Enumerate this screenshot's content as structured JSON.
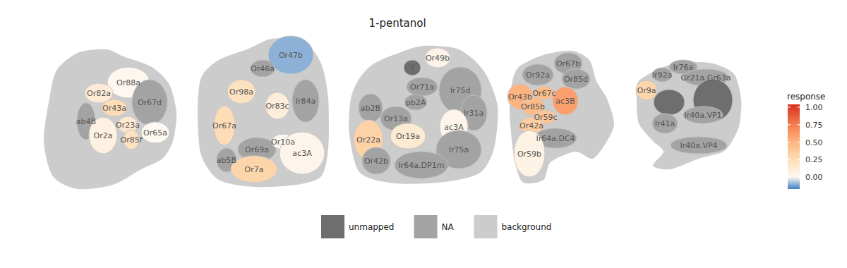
{
  "chart_data": {
    "type": "glomerular_map",
    "title": "1-pentanol",
    "panels": [
      {
        "glomeruli": [
          {
            "label": "Or88a",
            "response": 0.01
          },
          {
            "label": "Or82a",
            "response": 0.12
          },
          {
            "label": "Or67d",
            "response": null,
            "status": "NA"
          },
          {
            "label": "ab4B",
            "response": null,
            "status": "NA"
          },
          {
            "label": "Or43a",
            "response": 0.25
          },
          {
            "label": "Or23a",
            "response": 0.15
          },
          {
            "label": "Or2a",
            "response": 0.07
          },
          {
            "label": "Or85f",
            "response": 0.2
          },
          {
            "label": "Or65a",
            "response": 0.0
          }
        ]
      },
      {
        "glomeruli": [
          {
            "label": "Or47b",
            "response": -0.1
          },
          {
            "label": "Or46a",
            "response": null,
            "status": "NA"
          },
          {
            "label": "Or98a",
            "response": 0.2
          },
          {
            "label": "Or83c",
            "response": 0.1
          },
          {
            "label": "Ir84a",
            "response": null,
            "status": "NA"
          },
          {
            "label": "Or67a",
            "response": 0.25
          },
          {
            "label": "Or69a",
            "response": null,
            "status": "NA"
          },
          {
            "label": "Or10a",
            "response": 0.02
          },
          {
            "label": "ac3A",
            "response": 0.03
          },
          {
            "label": "ab5B",
            "response": null,
            "status": "NA"
          },
          {
            "label": "Or7a",
            "response": 0.3
          }
        ]
      },
      {
        "glomeruli": [
          {
            "label": "?",
            "response": null,
            "status": "unmapped"
          },
          {
            "label": "Or49b",
            "response": 0.05
          },
          {
            "label": "Or71a",
            "response": null,
            "status": "NA"
          },
          {
            "label": "Ir75d",
            "response": null,
            "status": "NA"
          },
          {
            "label": "ab2B",
            "response": null,
            "status": "NA"
          },
          {
            "label": "pb2A",
            "response": null,
            "status": "NA"
          },
          {
            "label": "Or13a",
            "response": null,
            "status": "NA"
          },
          {
            "label": "Ir31a",
            "response": null,
            "status": "NA"
          },
          {
            "label": "ac3A",
            "response": 0.03
          },
          {
            "label": "Or19a",
            "response": 0.13
          },
          {
            "label": "Or22a",
            "response": 0.32
          },
          {
            "label": "Or42b",
            "response": null,
            "status": "NA"
          },
          {
            "label": "Ir75a",
            "response": null,
            "status": "NA"
          },
          {
            "label": "Ir64a.DP1m",
            "response": null,
            "status": "NA"
          }
        ]
      },
      {
        "glomeruli": [
          {
            "label": "Or67b",
            "response": null,
            "status": "NA"
          },
          {
            "label": "Or92a",
            "response": null,
            "status": "NA"
          },
          {
            "label": "Or85d",
            "response": null,
            "status": "NA"
          },
          {
            "label": "Or43b",
            "response": 0.5
          },
          {
            "label": "Or67c",
            "response": 0.45
          },
          {
            "label": "ac3B",
            "response": 0.6
          },
          {
            "label": "Or85b",
            "response": 0.45
          },
          {
            "label": "Or59c",
            "response": 0.4
          },
          {
            "label": "Or42a",
            "response": 0.35
          },
          {
            "label": "Ir64a.DC4",
            "response": null,
            "status": "NA"
          },
          {
            "label": "Or59b",
            "response": 0.06
          }
        ]
      },
      {
        "glomeruli": [
          {
            "label": "Ir76a",
            "response": null,
            "status": "NA"
          },
          {
            "label": "Ir92a",
            "response": null,
            "status": "NA"
          },
          {
            "label": "Gr21a.Gr63a",
            "response": null,
            "status": "NA"
          },
          {
            "label": "Or9a",
            "response": 0.3
          },
          {
            "label": null,
            "response": null,
            "status": "unmapped"
          },
          {
            "label": null,
            "response": null,
            "status": "unmapped"
          },
          {
            "label": "Ir40a.VP1",
            "response": null,
            "status": "NA"
          },
          {
            "label": "Ir41a",
            "response": null,
            "status": "NA"
          },
          {
            "label": "Ir40a.VP4",
            "response": null,
            "status": "NA"
          }
        ]
      }
    ],
    "colorbar": {
      "title": "response",
      "lim": [
        -0.17,
        1.04
      ],
      "ticks": [
        {
          "value": 0,
          "label": "0.00"
        },
        {
          "value": 0.25,
          "label": "0.25"
        },
        {
          "value": 0.5,
          "label": "0.50"
        },
        {
          "value": 0.75,
          "label": "0.75"
        },
        {
          "value": 1,
          "label": "1.00"
        }
      ]
    },
    "legend_items": [
      {
        "name": "unmapped",
        "color": "#6e6e6e"
      },
      {
        "name": "NA",
        "color": "#a3a3a3"
      },
      {
        "name": "background",
        "color": "#cccccc"
      }
    ]
  }
}
